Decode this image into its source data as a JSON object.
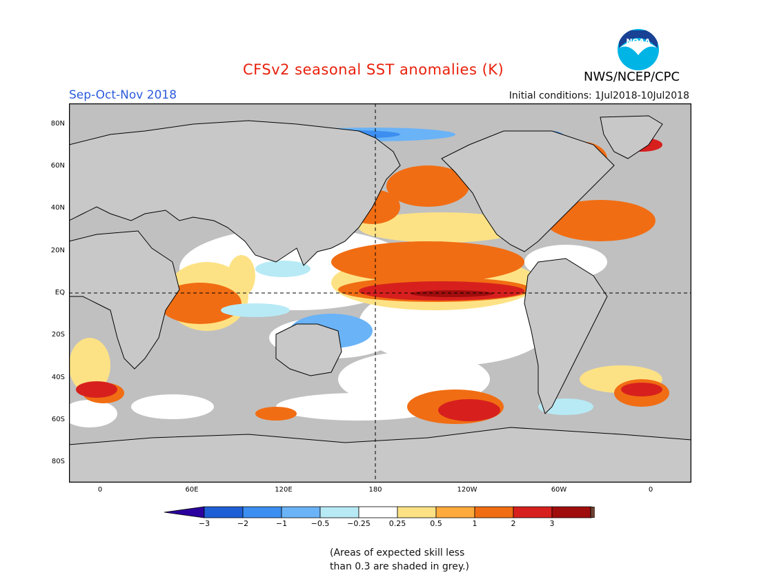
{
  "title": "CFSv2 seasonal SST anomalies (K)",
  "agency": "NWS/NCEP/CPC",
  "logo_text": "NOAA",
  "season": "Sep-Oct-Nov 2018",
  "initial_conditions": "Initial conditions: 1Jul2018-10Jul2018",
  "note_line1": "(Areas of expected skill less",
  "note_line2": "than 0.3 are shaded in grey.)",
  "lat_labels": [
    "80N",
    "60N",
    "40N",
    "20N",
    "EQ",
    "20S",
    "40S",
    "60S",
    "80S"
  ],
  "lon_labels": [
    "0",
    "60E",
    "120E",
    "180",
    "120W",
    "60W",
    "0"
  ],
  "colorbar": {
    "labels": [
      "−3",
      "−2",
      "−1",
      "−0.5",
      "−0.25",
      "0.25",
      "0.5",
      "1",
      "2",
      "3"
    ],
    "colors": [
      "#2b009e",
      "#1f5fd6",
      "#3c8ef0",
      "#6ab3f7",
      "#b7eaf5",
      "#ffffff",
      "#fde285",
      "#fdab3c",
      "#f16d13",
      "#d7201e",
      "#a00d0d",
      "#6b4133"
    ]
  },
  "colors": {
    "land": "#c8c8c8",
    "skill_grey": "#c0c0c0",
    "title": "#e8200c",
    "season": "#2b5bdb"
  }
}
